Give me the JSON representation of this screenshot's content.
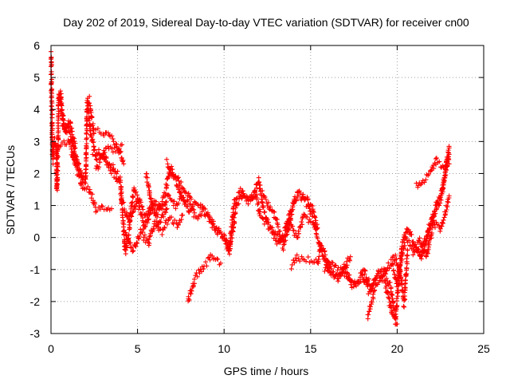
{
  "chart_data": {
    "type": "scatter",
    "title": "Day 202 of 2019, Sidereal Day-to-day VTEC variation (SDTVAR) for receiver cn00",
    "xlabel": "GPS time / hours",
    "ylabel": "SDTVAR / TECUs",
    "xlim": [
      0,
      25
    ],
    "ylim": [
      -3,
      6
    ],
    "x_ticks": [
      0,
      5,
      10,
      15,
      20,
      25
    ],
    "y_ticks": [
      -3,
      -2,
      -1,
      0,
      1,
      2,
      3,
      4,
      5,
      6
    ],
    "grid": true,
    "marker": "+",
    "series_color": "#ff0000",
    "series": [
      {
        "name": "SDTVAR",
        "trend": [
          [
            0.0,
            5.8
          ],
          [
            0.05,
            4.0
          ],
          [
            0.1,
            2.4
          ],
          [
            0.2,
            3.0
          ],
          [
            0.3,
            2.8
          ],
          [
            0.35,
            1.5
          ],
          [
            0.45,
            4.4
          ],
          [
            0.55,
            4.5
          ],
          [
            0.7,
            3.5
          ],
          [
            0.85,
            3.2
          ],
          [
            1.0,
            3.6
          ],
          [
            1.2,
            3.0
          ],
          [
            1.4,
            2.6
          ],
          [
            1.6,
            2.2
          ],
          [
            1.8,
            1.7
          ],
          [
            2.0,
            1.8
          ],
          [
            2.1,
            4.3
          ],
          [
            2.3,
            3.2
          ],
          [
            2.6,
            2.5
          ],
          [
            3.0,
            2.6
          ],
          [
            3.3,
            2.3
          ],
          [
            3.7,
            2.1
          ],
          [
            4.0,
            1.8
          ],
          [
            4.3,
            -0.5
          ],
          [
            4.6,
            0.6
          ],
          [
            5.0,
            1.2
          ],
          [
            5.4,
            0.3
          ],
          [
            5.8,
            1.0
          ],
          [
            6.2,
            0.8
          ],
          [
            6.6,
            1.4
          ],
          [
            6.9,
            2.2
          ],
          [
            7.2,
            1.8
          ],
          [
            7.6,
            1.2
          ],
          [
            8.0,
            1.0
          ],
          [
            8.4,
            0.6
          ],
          [
            8.8,
            0.8
          ],
          [
            9.2,
            0.5
          ],
          [
            9.6,
            0.2
          ],
          [
            10.0,
            0.0
          ],
          [
            10.3,
            -0.4
          ],
          [
            10.6,
            1.2
          ],
          [
            11.0,
            1.5
          ],
          [
            11.4,
            1.1
          ],
          [
            11.8,
            1.4
          ],
          [
            12.1,
            0.7
          ],
          [
            12.5,
            0.4
          ],
          [
            12.9,
            0.1
          ],
          [
            13.3,
            -0.1
          ],
          [
            13.7,
            0.3
          ],
          [
            14.1,
            1.2
          ],
          [
            14.5,
            1.3
          ],
          [
            14.8,
            1.2
          ],
          [
            15.1,
            0.6
          ],
          [
            15.4,
            0.0
          ],
          [
            15.7,
            -0.5
          ],
          [
            16.0,
            -1.0
          ],
          [
            16.4,
            -1.2
          ],
          [
            16.8,
            -1.0
          ],
          [
            17.2,
            -1.3
          ],
          [
            17.6,
            -1.5
          ],
          [
            18.0,
            -1.2
          ],
          [
            18.4,
            -1.7
          ],
          [
            18.8,
            -1.2
          ],
          [
            19.2,
            -1.0
          ],
          [
            19.6,
            -1.5
          ],
          [
            19.9,
            -2.6
          ],
          [
            20.2,
            -0.8
          ],
          [
            20.5,
            0.0
          ],
          [
            20.9,
            -0.3
          ],
          [
            21.3,
            -0.5
          ],
          [
            21.7,
            0.0
          ],
          [
            22.1,
            0.6
          ],
          [
            22.5,
            1.2
          ],
          [
            22.8,
            2.0
          ],
          [
            23.0,
            2.6
          ]
        ],
        "segments": [
          [
            [
              0.0,
              2.8
            ],
            [
              1.0,
              3.0
            ],
            [
              1.5,
              2.3
            ],
            [
              2.0,
              1.7
            ]
          ],
          [
            [
              0.45,
              4.5
            ],
            [
              0.8,
              3.4
            ],
            [
              1.1,
              3.6
            ],
            [
              1.4,
              2.8
            ]
          ],
          [
            [
              1.2,
              2.6
            ],
            [
              1.5,
              2.1
            ],
            [
              1.8,
              1.6
            ],
            [
              2.2,
              1.5
            ],
            [
              2.6,
              0.9
            ],
            [
              3.0,
              1.0
            ],
            [
              3.5,
              0.9
            ]
          ],
          [
            [
              2.2,
              4.3
            ],
            [
              2.5,
              3.3
            ],
            [
              3.0,
              3.3
            ],
            [
              3.5,
              3.1
            ],
            [
              3.9,
              2.8
            ],
            [
              4.2,
              2.3
            ]
          ],
          [
            [
              2.4,
              2.7
            ],
            [
              3.0,
              2.6
            ],
            [
              3.5,
              2.1
            ],
            [
              3.9,
              1.8
            ]
          ],
          [
            [
              2.6,
              2.1
            ],
            [
              3.2,
              2.8
            ],
            [
              3.6,
              2.7
            ],
            [
              4.1,
              2.9
            ]
          ],
          [
            [
              4.0,
              1.3
            ],
            [
              4.5,
              0.5
            ],
            [
              4.8,
              1.5
            ],
            [
              5.2,
              1.0
            ],
            [
              5.6,
              0.6
            ],
            [
              6.0,
              1.1
            ],
            [
              6.4,
              0.9
            ],
            [
              6.8,
              1.3
            ],
            [
              7.2,
              1.0
            ],
            [
              7.6,
              1.3
            ],
            [
              8.0,
              0.8
            ],
            [
              8.4,
              1.1
            ],
            [
              8.8,
              0.9
            ],
            [
              9.2,
              0.6
            ],
            [
              9.6,
              0.2
            ],
            [
              10.0,
              0.1
            ]
          ],
          [
            [
              4.3,
              0.2
            ],
            [
              4.7,
              -0.4
            ],
            [
              5.2,
              0.2
            ],
            [
              5.6,
              -0.2
            ],
            [
              6.0,
              0.5
            ],
            [
              6.4,
              0.2
            ],
            [
              6.8,
              0.6
            ],
            [
              7.3,
              0.4
            ],
            [
              7.6,
              0.7
            ]
          ],
          [
            [
              5.5,
              2.0
            ],
            [
              5.8,
              1.1
            ],
            [
              6.2,
              0.4
            ],
            [
              6.7,
              0.9
            ]
          ],
          [
            [
              6.7,
              2.4
            ],
            [
              7.0,
              2.0
            ],
            [
              7.3,
              1.9
            ],
            [
              7.7,
              1.5
            ],
            [
              8.1,
              1.2
            ]
          ],
          [
            [
              7.9,
              -2.0
            ],
            [
              8.3,
              -1.3
            ],
            [
              8.8,
              -0.9
            ],
            [
              9.3,
              -0.6
            ],
            [
              9.8,
              -0.8
            ]
          ],
          [
            [
              10.0,
              0.0
            ],
            [
              10.3,
              -0.5
            ],
            [
              10.7,
              1.0
            ],
            [
              11.1,
              1.4
            ],
            [
              11.6,
              1.2
            ],
            [
              12.0,
              1.8
            ],
            [
              12.3,
              0.8
            ],
            [
              12.7,
              0.3
            ],
            [
              13.1,
              -0.2
            ],
            [
              13.5,
              0.2
            ],
            [
              13.9,
              0.9
            ],
            [
              14.3,
              1.4
            ],
            [
              14.7,
              1.1
            ],
            [
              15.1,
              0.9
            ],
            [
              15.4,
              0.3
            ]
          ],
          [
            [
              12.2,
              1.4
            ],
            [
              12.6,
              1.0
            ],
            [
              13.0,
              0.6
            ],
            [
              13.4,
              -0.3
            ],
            [
              13.8,
              0.5
            ],
            [
              14.2,
              0.0
            ],
            [
              14.6,
              0.7
            ],
            [
              15.0,
              0.5
            ]
          ],
          [
            [
              13.9,
              -0.9
            ],
            [
              14.2,
              -0.6
            ],
            [
              15.4,
              -0.8
            ],
            [
              15.6,
              -0.2
            ],
            [
              15.9,
              -0.6
            ],
            [
              16.2,
              -1.1
            ],
            [
              16.6,
              -1.3
            ],
            [
              17.0,
              -0.9
            ],
            [
              17.4,
              -1.5
            ],
            [
              17.8,
              -1.3
            ],
            [
              18.1,
              -1.0
            ],
            [
              18.5,
              -1.6
            ],
            [
              18.9,
              -1.1
            ],
            [
              19.3,
              -1.4
            ],
            [
              19.7,
              -2.4
            ],
            [
              20.0,
              -2.7
            ]
          ],
          [
            [
              15.8,
              -1.0
            ],
            [
              16.3,
              -0.8
            ],
            [
              16.8,
              -1.1
            ],
            [
              17.3,
              -0.6
            ]
          ],
          [
            [
              18.3,
              -2.5
            ],
            [
              18.7,
              -1.6
            ],
            [
              19.1,
              -1.3
            ],
            [
              19.5,
              -0.9
            ],
            [
              19.9,
              -0.6
            ],
            [
              20.2,
              -1.2
            ],
            [
              20.4,
              -2.1
            ],
            [
              20.6,
              -0.4
            ]
          ],
          [
            [
              19.7,
              -0.8
            ],
            [
              20.0,
              -1.5
            ],
            [
              20.3,
              -0.2
            ],
            [
              20.6,
              0.3
            ],
            [
              21.0,
              -0.2
            ],
            [
              21.4,
              -0.6
            ],
            [
              21.8,
              0.2
            ],
            [
              22.2,
              0.9
            ],
            [
              22.6,
              1.5
            ],
            [
              23.0,
              2.8
            ]
          ],
          [
            [
              20.9,
              -0.5
            ],
            [
              21.3,
              -0.1
            ],
            [
              21.7,
              -0.6
            ],
            [
              22.1,
              0.5
            ],
            [
              22.5,
              0.2
            ],
            [
              23.0,
              1.3
            ]
          ],
          [
            [
              21.1,
              1.6
            ],
            [
              21.5,
              1.8
            ],
            [
              21.9,
              2.0
            ],
            [
              22.3,
              2.4
            ],
            [
              22.7,
              2.2
            ],
            [
              23.0,
              2.3
            ]
          ]
        ]
      }
    ]
  }
}
